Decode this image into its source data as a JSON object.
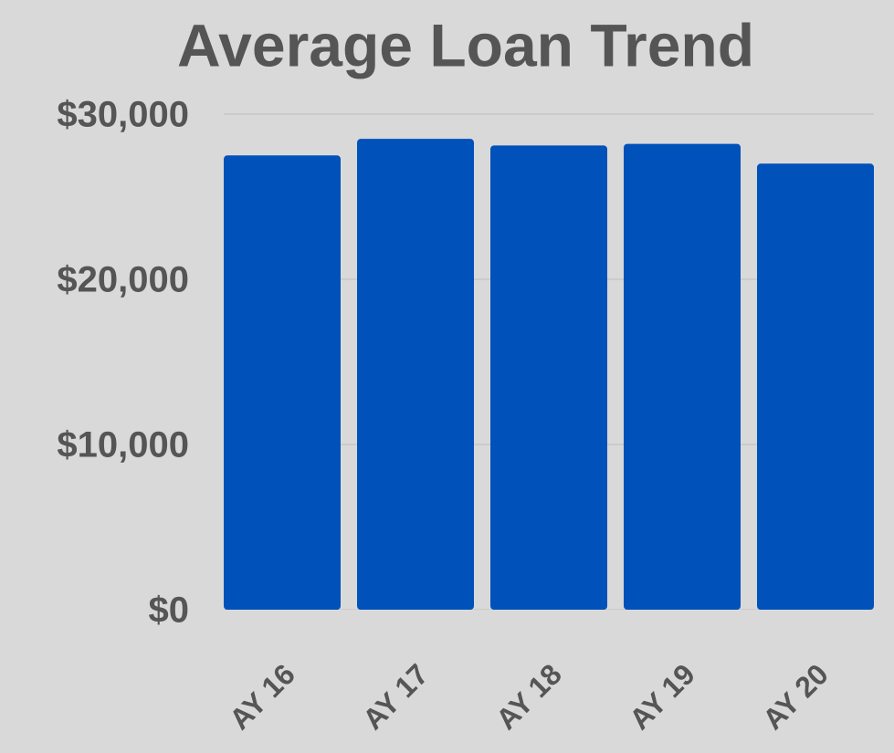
{
  "chart_data": {
    "type": "bar",
    "title": "Average Loan Trend",
    "categories": [
      "AY 16",
      "AY 17",
      "AY 18",
      "AY 19",
      "AY 20"
    ],
    "values": [
      27500,
      28500,
      28100,
      28200,
      27000
    ],
    "color": "#0051ba",
    "ylim": [
      0,
      30000
    ],
    "yticks": [
      {
        "value": 0,
        "label": "$0"
      },
      {
        "value": 10000,
        "label": "$10,000"
      },
      {
        "value": 20000,
        "label": "$20,000"
      },
      {
        "value": 30000,
        "label": "$30,000"
      }
    ],
    "grid": true
  }
}
